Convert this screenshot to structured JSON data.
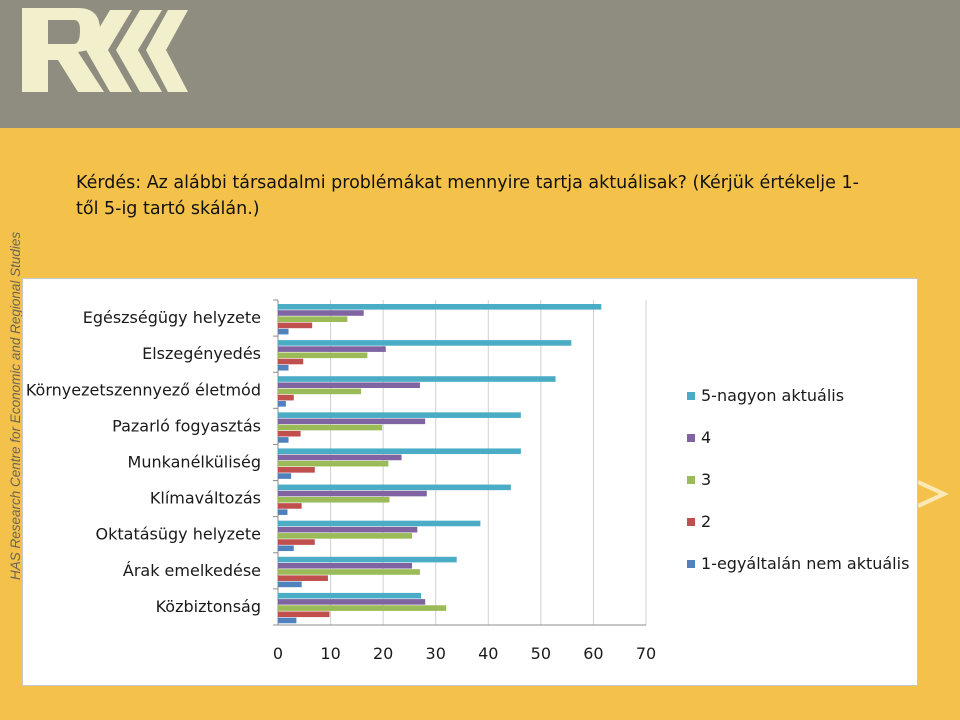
{
  "header": {
    "vertical_caption": "HAS Research Centre for Economic and Regional Studies"
  },
  "question": {
    "text": "Kérdés: Az alábbi társadalmi problémákat mennyire tartja aktuálisak? (Kérjük értékelje 1-től 5-ig tartó skálán.)"
  },
  "chart_data": {
    "type": "bar",
    "orientation": "horizontal",
    "categories": [
      "Egészségügy helyzete",
      "Elszegényedés",
      "Környezetszennyező életmód",
      "Pazarló fogyasztás",
      "Munkanélküliség",
      "Klímaváltozás",
      "Oktatásügy helyzete",
      "Árak emelkedése",
      "Közbiztonság"
    ],
    "series": [
      {
        "name": "5-nagyon aktuális",
        "color": "#4bacc6",
        "values": [
          61.5,
          55.8,
          52.8,
          46.2,
          46.2,
          44.3,
          38.5,
          34.0,
          27.2
        ]
      },
      {
        "name": "4",
        "color": "#8064a2",
        "values": [
          16.3,
          20.5,
          27.0,
          28.0,
          23.5,
          28.3,
          26.5,
          25.5,
          28.0
        ]
      },
      {
        "name": "3",
        "color": "#9bbb59",
        "values": [
          13.2,
          17.0,
          15.8,
          19.8,
          21.0,
          21.2,
          25.5,
          27.0,
          32.0
        ]
      },
      {
        "name": "2",
        "color": "#c0504d",
        "values": [
          6.5,
          4.8,
          3.0,
          4.3,
          7.0,
          4.5,
          7.0,
          9.5,
          9.8
        ]
      },
      {
        "name": "1-egyáltalán nem aktuális",
        "color": "#4f81bd",
        "values": [
          2.0,
          2.0,
          1.5,
          2.0,
          2.5,
          1.8,
          3.0,
          4.5,
          3.5
        ]
      }
    ],
    "xlim": [
      0,
      70
    ],
    "x_ticks": [
      0,
      10,
      20,
      30,
      40,
      50,
      60,
      70
    ],
    "grid": true,
    "legend_position": "right"
  }
}
